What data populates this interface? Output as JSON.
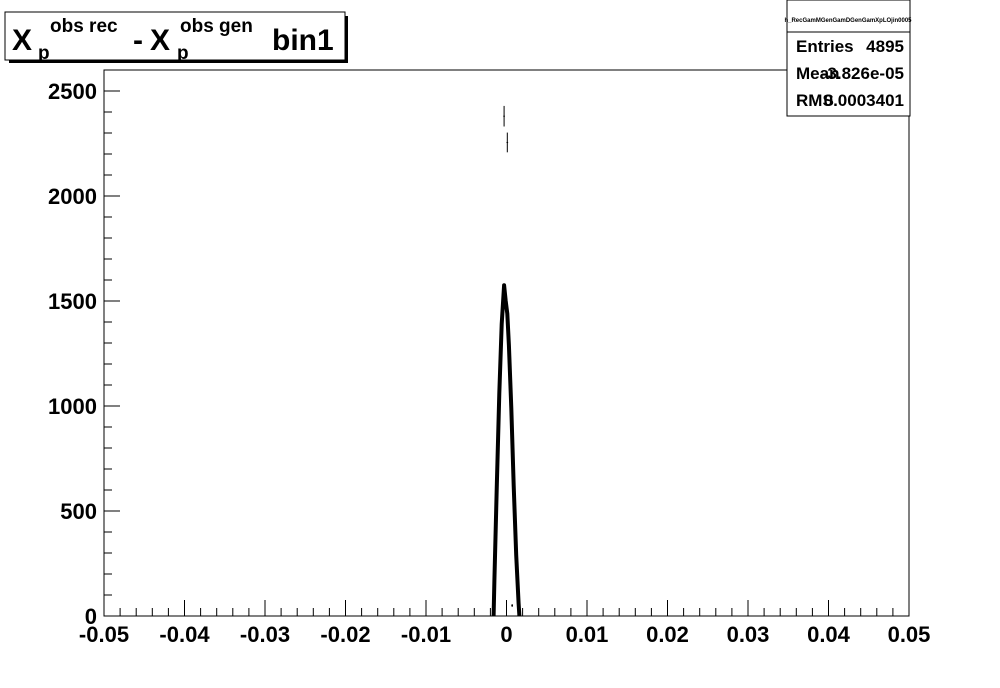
{
  "title": {
    "x_letter": "X",
    "subscript": "p",
    "sup1": "obs rec",
    "minus": "-",
    "sup2": "obs gen",
    "suffix": "bin1"
  },
  "stats": {
    "name": "h_RecGamMGenGamDGenGamXpLOjin0005",
    "rows": [
      {
        "label": "Entries",
        "value": "4895"
      },
      {
        "label": "Mean",
        "value": "-3.826e-05"
      },
      {
        "label": "RMS",
        "value": "0.0003401"
      }
    ]
  },
  "chart_data": {
    "type": "scatter",
    "xlim": [
      -0.05,
      0.05
    ],
    "ylim": [
      0,
      2600
    ],
    "x_ticks": [
      -0.05,
      -0.04,
      -0.03,
      -0.02,
      -0.01,
      0,
      0.01,
      0.02,
      0.03,
      0.04,
      0.05
    ],
    "x_tick_labels": [
      "-0.05",
      "-0.04",
      "-0.03",
      "-0.02",
      "-0.01",
      "0",
      "0.01",
      "0.02",
      "0.03",
      "0.04",
      "0.05"
    ],
    "y_ticks": [
      0,
      500,
      1000,
      1500,
      2000,
      2500
    ],
    "y_tick_labels": [
      "0",
      "500",
      "1000",
      "1500",
      "2000",
      "2500"
    ],
    "points": [
      {
        "x": -0.0015,
        "y": 170,
        "xerr": 0.0001,
        "yerr": 13
      },
      {
        "x": -0.0003,
        "y": 2380,
        "xerr": 0.0001,
        "yerr": 49
      },
      {
        "x": 0.0001,
        "y": 2255,
        "xerr": 0.0001,
        "yerr": 47
      },
      {
        "x": 0.0007,
        "y": 50,
        "xerr": 0.0001,
        "yerr": 7
      }
    ],
    "fit": {
      "x": [
        -0.0016,
        -0.0015,
        -0.0012,
        -0.0009,
        -0.0006,
        -0.0003,
        -0.0001,
        0.0001,
        0.0003,
        0.0006,
        0.0009,
        0.0012,
        0.0015,
        0.0016
      ],
      "y": [
        0,
        170,
        620,
        1060,
        1390,
        1575,
        1500,
        1440,
        1290,
        990,
        620,
        290,
        60,
        0
      ]
    },
    "grid": false
  }
}
